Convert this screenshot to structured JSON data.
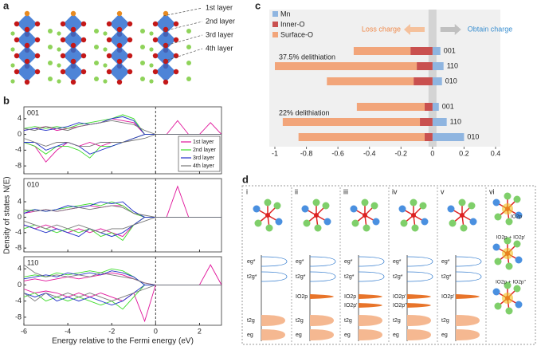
{
  "chart_data": [
    {
      "type": "line",
      "panel_label": "b",
      "x": [
        -6,
        -5.5,
        -5,
        -4.5,
        -4,
        -3.5,
        -3,
        -2.5,
        -2,
        -1.5,
        -1,
        -0.5,
        0,
        0.5,
        1,
        1.5,
        2,
        2.5,
        3
      ],
      "xlim": [
        -6,
        3
      ],
      "xticks": [
        -6,
        -4,
        -2,
        0,
        2
      ],
      "vline_x": 0,
      "xlabel": "Energy relative to the Fermi energy (eV)",
      "ylabel": "Density of states N(E)",
      "legend_position": "right",
      "series": [
        {
          "name": "1st layer",
          "color": "#e0139a"
        },
        {
          "name": "2nd layer",
          "color": "#3ddc2a"
        },
        {
          "name": "3rd layer",
          "color": "#2030c8"
        },
        {
          "name": "4th layer",
          "color": "#777777"
        }
      ],
      "subplots": [
        {
          "title": "001",
          "ylim": [
            -10,
            7
          ],
          "yticks": [
            4,
            0,
            -4,
            -8
          ],
          "values": [
            [
              1,
              1.5,
              2,
              1,
              1.5,
              2,
              2.5,
              3,
              4,
              3.5,
              3,
              0,
              0,
              0,
              3.5,
              0,
              0,
              3,
              0
            ],
            [
              1.5,
              2,
              1.5,
              2,
              1.5,
              2.5,
              3,
              3.5,
              4,
              5,
              4,
              0,
              0,
              0,
              0,
              0,
              0,
              0,
              0
            ],
            [
              1,
              1.5,
              1,
              1.5,
              2,
              3,
              2.5,
              3,
              4,
              4.5,
              3.5,
              0,
              0,
              0,
              0,
              0,
              0,
              0,
              0
            ],
            [
              1.5,
              1,
              2,
              1.5,
              1,
              2,
              2.5,
              3,
              3.5,
              3,
              2.5,
              1,
              0,
              0,
              0,
              0,
              0,
              0,
              0
            ]
          ],
          "values_down": [
            [
              -2,
              -3,
              -7,
              -4,
              -2,
              -3,
              -2,
              -3,
              -2,
              -2,
              -1,
              0,
              0,
              0,
              0,
              0,
              0,
              0,
              0
            ],
            [
              -2,
              -3,
              -5,
              -3,
              -3,
              -4,
              -6,
              -3,
              -3,
              -2,
              -1,
              0,
              0,
              0,
              0,
              0,
              0,
              0,
              0
            ],
            [
              -2,
              -2,
              -4,
              -3,
              -2,
              -3,
              -5,
              -4,
              -3,
              -2,
              -1,
              0,
              0,
              0,
              0,
              0,
              0,
              0,
              0
            ],
            [
              -1,
              -2,
              -3,
              -2,
              -2,
              -3,
              -3,
              -2,
              -2,
              -2,
              -1.5,
              -1,
              0,
              0,
              0,
              0,
              0,
              0,
              0
            ]
          ]
        },
        {
          "title": "010",
          "ylim": [
            -9,
            10
          ],
          "yticks": [
            4,
            0,
            -4,
            -8
          ],
          "values": [
            [
              1,
              1.5,
              2,
              1.5,
              2,
              2.5,
              3,
              2.5,
              3,
              3,
              1,
              0,
              0,
              0,
              8,
              0,
              0,
              0,
              0
            ],
            [
              1.5,
              2,
              1.5,
              2,
              2.5,
              3,
              3.5,
              3,
              4,
              3,
              1,
              0,
              0,
              0,
              0,
              0,
              0,
              0,
              0
            ],
            [
              1,
              2,
              1.5,
              2,
              3,
              2.5,
              3,
              4,
              3.5,
              4,
              1.5,
              0,
              0,
              0,
              0,
              0,
              0,
              0,
              0
            ],
            [
              2,
              1.5,
              2,
              1.5,
              2,
              2.5,
              2,
              2.5,
              3,
              2.5,
              1,
              0.5,
              0,
              0,
              0,
              0,
              0,
              0,
              0
            ]
          ],
          "values_down": [
            [
              -2,
              -3,
              -2,
              -3,
              -4,
              -3,
              -4,
              -3,
              -4,
              -5,
              -2,
              0,
              0,
              0,
              0,
              0,
              0,
              0,
              0
            ],
            [
              -3,
              -2,
              -3,
              -4,
              -3,
              -4,
              -3,
              -5,
              -4,
              -6,
              -2,
              0,
              0,
              0,
              0,
              0,
              0,
              0,
              0
            ],
            [
              -2,
              -3,
              -4,
              -3,
              -4,
              -5,
              -3,
              -4,
              -5,
              -4,
              -2,
              0,
              0,
              0,
              0,
              0,
              0,
              0,
              0
            ],
            [
              -1,
              -2,
              -3,
              -2,
              -3,
              -2,
              -3,
              -4,
              -3,
              -3,
              -2,
              -1,
              0,
              0,
              0,
              0,
              0,
              0,
              0
            ]
          ]
        },
        {
          "title": "110",
          "ylim": [
            -10,
            7
          ],
          "yticks": [
            4,
            0,
            -4,
            -8
          ],
          "values": [
            [
              1,
              1.5,
              1,
              1.5,
              2,
              1.5,
              2,
              2.5,
              3,
              2.5,
              1.5,
              0.5,
              0,
              0,
              0,
              0,
              0,
              5,
              0
            ],
            [
              2,
              2.5,
              2,
              3,
              2.5,
              3,
              3.5,
              3,
              4,
              3.5,
              2,
              0,
              0,
              0,
              0,
              0,
              0,
              0,
              0
            ],
            [
              1.5,
              2,
              2.5,
              2,
              3,
              2.5,
              3,
              2.5,
              3.5,
              3,
              2,
              0,
              0,
              0,
              0,
              0,
              0,
              0,
              0
            ],
            [
              5,
              3,
              2,
              2.5,
              2,
              2.5,
              2,
              3,
              2.5,
              2,
              1.5,
              0.5,
              0,
              0,
              0,
              0,
              0,
              0,
              0
            ]
          ],
          "values_down": [
            [
              -1,
              -2,
              -1.5,
              -2,
              -3,
              -2,
              -3,
              -2,
              -3,
              -4,
              -2,
              -9,
              0,
              0,
              0,
              0,
              0,
              0,
              0
            ],
            [
              -3,
              -2,
              -4,
              -3,
              -4,
              -3,
              -4,
              -5,
              -4,
              -6,
              -3,
              0,
              0,
              0,
              0,
              0,
              0,
              0,
              0
            ],
            [
              -2,
              -3,
              -2,
              -4,
              -3,
              -4,
              -3,
              -4,
              -5,
              -4,
              -2,
              0,
              0,
              0,
              0,
              0,
              0,
              0,
              0
            ],
            [
              -2,
              -4,
              -2,
              -3,
              -2,
              -3,
              -2,
              -3,
              -4,
              -3,
              -2,
              -1,
              0,
              0,
              0,
              0,
              0,
              0,
              0
            ]
          ]
        }
      ]
    },
    {
      "type": "bar",
      "orientation": "horizontal",
      "panel_label": "c",
      "categories": [
        "001",
        "110",
        "010",
        "001",
        "110",
        "010"
      ],
      "group_labels": [
        "37.5% delithiation",
        "22% delithiation"
      ],
      "series": [
        {
          "name": "Mn",
          "color": "#8fb5e0",
          "values": [
            0.05,
            0.07,
            0.06,
            0.04,
            0.09,
            0.2
          ]
        },
        {
          "name": "Inner-O",
          "color": "#c9504f",
          "values": [
            -0.14,
            -0.1,
            -0.12,
            -0.05,
            -0.08,
            -0.05
          ]
        },
        {
          "name": "Surface-O",
          "color": "#f2a57a",
          "values": [
            -0.36,
            -0.9,
            -0.55,
            -0.43,
            -0.87,
            -0.8
          ]
        }
      ],
      "xlim": [
        -1,
        0.4
      ],
      "xticks": [
        -1,
        -0.8,
        -0.6,
        -0.4,
        -0.2,
        0,
        0.2,
        0.4
      ],
      "annotations": [
        {
          "text": "Loss charge",
          "color": "#f08a4b"
        },
        {
          "text": "Obtain charge",
          "color": "#3a8fd0"
        }
      ]
    }
  ],
  "panel_a": {
    "label": "a",
    "layers": [
      "1st layer",
      "2nd layer",
      "3rd layer",
      "4th layer"
    ]
  },
  "panel_d": {
    "label": "d",
    "columns": [
      {
        "label": "i",
        "levels": [
          "eg*",
          "t2g*",
          "t2g",
          "eg"
        ]
      },
      {
        "label": "ii",
        "levels": [
          "eg*",
          "t2g*",
          "IO2p",
          "t2g",
          "eg"
        ]
      },
      {
        "label": "iii",
        "levels": [
          "eg*",
          "t2g*",
          "IO2p",
          "IO2p'",
          "t2g",
          "eg"
        ]
      },
      {
        "label": "iv",
        "levels": [
          "eg*",
          "t2g*",
          "IO2p'",
          "IO2p''",
          "t2g",
          "eg"
        ]
      },
      {
        "label": "v",
        "levels": [
          "eg*",
          "t2g*",
          "IO2p'",
          "t2g",
          "eg"
        ]
      },
      {
        "label": "vi",
        "captions": [
          "IO2p",
          "IO2p + IO2p'",
          "IO2p + IO2p''"
        ]
      }
    ]
  }
}
